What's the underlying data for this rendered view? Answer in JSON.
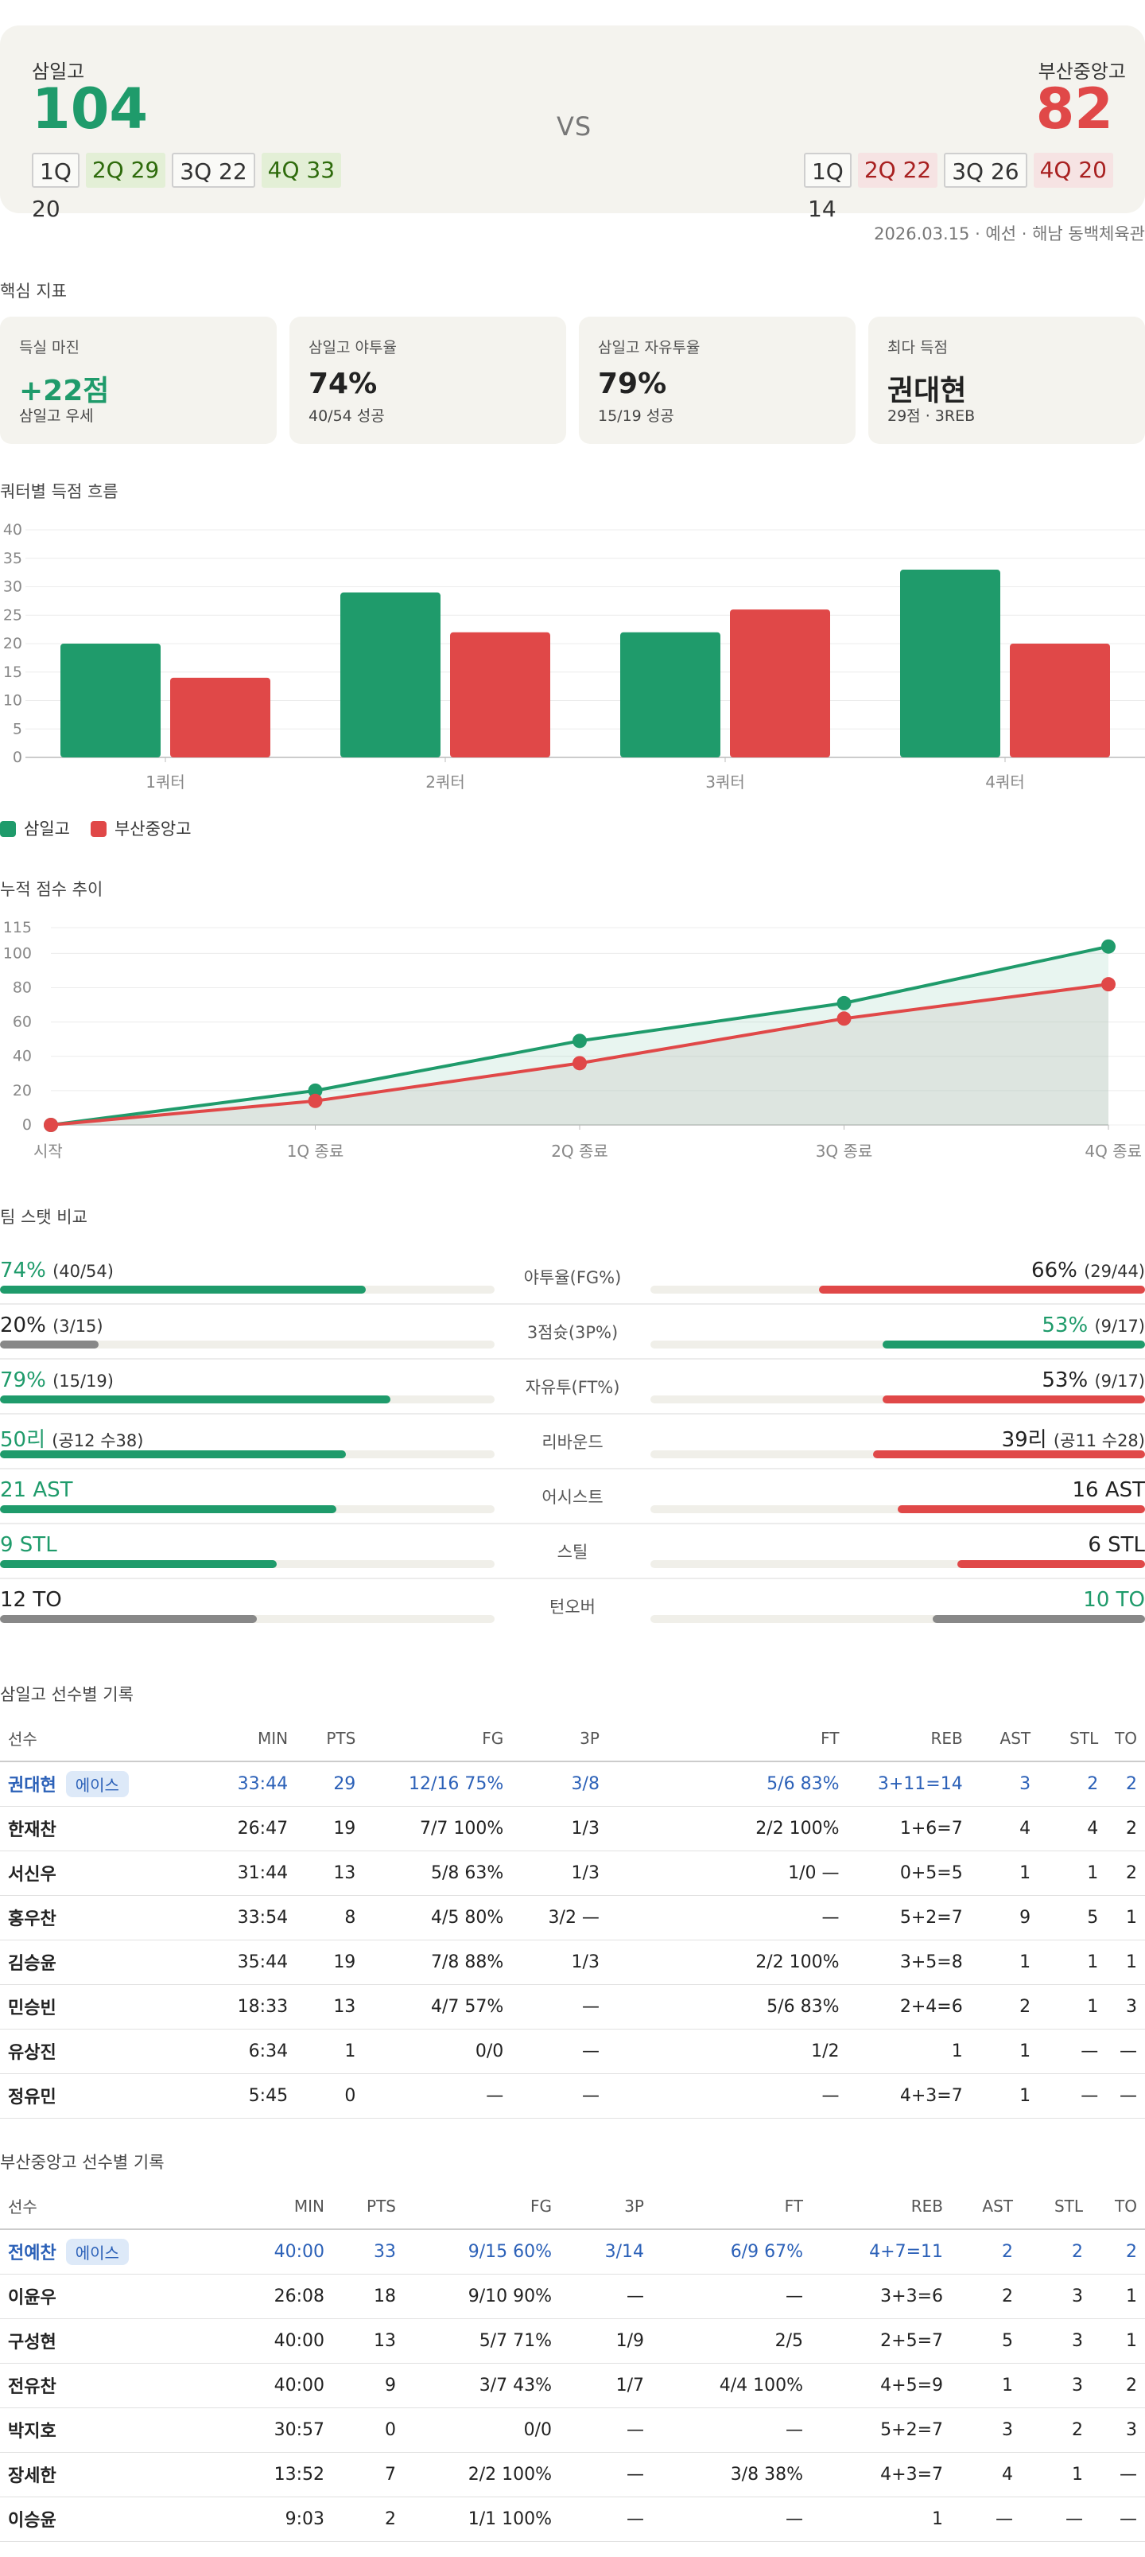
{
  "game": {
    "home": {
      "name": "삼일고",
      "score": "104",
      "color": "#1f9b6b",
      "quarters": [
        "1Q",
        "2Q 29",
        "3Q 22",
        "4Q 33"
      ],
      "q1_value": "20"
    },
    "away": {
      "name": "부산중앙고",
      "score": "82",
      "color": "#e04848",
      "quarters": [
        "1Q",
        "2Q 22",
        "3Q 26",
        "4Q 20"
      ],
      "q1_value": "14"
    },
    "vs": "VS",
    "meta": "2026.03.15 · 예선 · 해남 동백체육관"
  },
  "sections": {
    "key_metrics": "핵심 지표",
    "quarter_chart": "쿼터별 득점 흐름",
    "cumulative_chart": "누적 점수 추이",
    "team_compare": "팀 스탯 비교",
    "home_players": "삼일고 선수별 기록",
    "away_players": "부산중앙고 선수별 기록"
  },
  "metrics": [
    {
      "label": "득실 마진",
      "value": "+22점",
      "sub": "삼일고 우세",
      "accent": true
    },
    {
      "label": "삼일고 야투율",
      "value": "74%",
      "sub": "40/54 성공",
      "accent": false
    },
    {
      "label": "삼일고 자유투율",
      "value": "79%",
      "sub": "15/19 성공",
      "accent": false
    },
    {
      "label": "최다 득점",
      "value": "권대현",
      "sub": "29점 · 3REB",
      "accent": false
    }
  ],
  "chart_data": [
    {
      "type": "bar",
      "title": "쿼터별 득점 흐름",
      "categories": [
        "1쿼터",
        "2쿼터",
        "3쿼터",
        "4쿼터"
      ],
      "series": [
        {
          "name": "삼일고",
          "values": [
            20,
            29,
            22,
            33
          ],
          "color": "#1f9b6b"
        },
        {
          "name": "부산중앙고",
          "values": [
            14,
            22,
            26,
            20
          ],
          "color": "#e04848"
        }
      ],
      "yticks": [
        0,
        5,
        10,
        15,
        20,
        25,
        30,
        35,
        40
      ],
      "ylim": [
        0,
        40
      ],
      "legend": "bottom-left"
    },
    {
      "type": "line",
      "title": "누적 점수 추이",
      "categories": [
        "시작",
        "1Q 종료",
        "2Q 종료",
        "3Q 종료",
        "4Q 종료"
      ],
      "series": [
        {
          "name": "삼일고",
          "values": [
            0,
            20,
            49,
            71,
            104
          ],
          "color": "#1f9b6b"
        },
        {
          "name": "부산중앙고",
          "values": [
            0,
            14,
            36,
            62,
            82
          ],
          "color": "#e04848"
        }
      ],
      "yticks": [
        0,
        20,
        40,
        60,
        80,
        100,
        115
      ],
      "ylim": [
        0,
        115
      ]
    }
  ],
  "team_stats": [
    {
      "label": "야투율(FG%)",
      "left_main": "74%",
      "left_sub": "(40/54)",
      "right_main": "66%",
      "right_sub": "(29/44)",
      "left_pct": 74,
      "right_pct": 66,
      "left_color": "#1f9b6b",
      "right_color": "#e04848",
      "left_text": "#1f9b6b",
      "right_text": "#222"
    },
    {
      "label": "3점슛(3P%)",
      "left_main": "20%",
      "left_sub": "(3/15)",
      "right_main": "53%",
      "right_sub": "(9/17)",
      "left_pct": 20,
      "right_pct": 53,
      "left_color": "#888888",
      "right_color": "#1f9b6b",
      "left_text": "#222",
      "right_text": "#1f9b6b"
    },
    {
      "label": "자유투(FT%)",
      "left_main": "79%",
      "left_sub": "(15/19)",
      "right_main": "53%",
      "right_sub": "(9/17)",
      "left_pct": 79,
      "right_pct": 53,
      "left_color": "#1f9b6b",
      "right_color": "#e04848",
      "left_text": "#1f9b6b",
      "right_text": "#222"
    },
    {
      "label": "리바운드",
      "left_main": "50리",
      "left_sub": "(공12 수38)",
      "right_main": "39리",
      "right_sub": "(공11 수28)",
      "left_pct": 70,
      "right_pct": 55,
      "left_color": "#1f9b6b",
      "right_color": "#e04848",
      "left_text": "#1f9b6b",
      "right_text": "#222"
    },
    {
      "label": "어시스트",
      "left_main": "21 AST",
      "left_sub": "",
      "right_main": "16 AST",
      "right_sub": "",
      "left_pct": 68,
      "right_pct": 50,
      "left_color": "#1f9b6b",
      "right_color": "#e04848",
      "left_text": "#1f9b6b",
      "right_text": "#222"
    },
    {
      "label": "스틸",
      "left_main": "9 STL",
      "left_sub": "",
      "right_main": "6 STL",
      "right_sub": "",
      "left_pct": 56,
      "right_pct": 38,
      "left_color": "#1f9b6b",
      "right_color": "#e04848",
      "left_text": "#1f9b6b",
      "right_text": "#222"
    },
    {
      "label": "턴오버",
      "left_main": "12 TO",
      "left_sub": "",
      "right_main": "10 TO",
      "right_sub": "",
      "left_pct": 52,
      "right_pct": 43,
      "left_color": "#888888",
      "right_color": "#888888",
      "left_text": "#222",
      "right_text": "#1f9b6b"
    }
  ],
  "player_columns": [
    "선수",
    "MIN",
    "PTS",
    "FG",
    "3P",
    "FT",
    "REB",
    "AST",
    "STL",
    "TO"
  ],
  "ace_badge": "에이스",
  "home_players": [
    {
      "name": "권대현",
      "ace": true,
      "cells": [
        "33:44",
        "29",
        "12/16 75%",
        "3/8",
        "5/6 83%",
        "3+11=14",
        "3",
        "2",
        "2"
      ]
    },
    {
      "name": "한재찬",
      "ace": false,
      "cells": [
        "26:47",
        "19",
        "7/7 100%",
        "1/3",
        "2/2 100%",
        "1+6=7",
        "4",
        "4",
        "2"
      ]
    },
    {
      "name": "서신우",
      "ace": false,
      "cells": [
        "31:44",
        "13",
        "5/8 63%",
        "1/3",
        "1/0 —",
        "0+5=5",
        "1",
        "1",
        "2"
      ]
    },
    {
      "name": "홍우찬",
      "ace": false,
      "cells": [
        "33:54",
        "8",
        "4/5 80%",
        "3/2 —",
        "—",
        "5+2=7",
        "9",
        "5",
        "1"
      ]
    },
    {
      "name": "김승윤",
      "ace": false,
      "cells": [
        "35:44",
        "19",
        "7/8 88%",
        "1/3",
        "2/2 100%",
        "3+5=8",
        "1",
        "1",
        "1"
      ]
    },
    {
      "name": "민승빈",
      "ace": false,
      "cells": [
        "18:33",
        "13",
        "4/7 57%",
        "—",
        "5/6 83%",
        "2+4=6",
        "2",
        "1",
        "3"
      ]
    },
    {
      "name": "유상진",
      "ace": false,
      "cells": [
        "6:34",
        "1",
        "0/0",
        "—",
        "1/2",
        "1",
        "1",
        "—",
        "—"
      ]
    },
    {
      "name": "정유민",
      "ace": false,
      "cells": [
        "5:45",
        "0",
        "—",
        "—",
        "—",
        "4+3=7",
        "1",
        "—",
        "—"
      ]
    }
  ],
  "away_players": [
    {
      "name": "전예찬",
      "ace": true,
      "cells": [
        "40:00",
        "33",
        "9/15 60%",
        "3/14",
        "6/9 67%",
        "4+7=11",
        "2",
        "2",
        "2"
      ]
    },
    {
      "name": "이윤우",
      "ace": false,
      "cells": [
        "26:08",
        "18",
        "9/10 90%",
        "—",
        "—",
        "3+3=6",
        "2",
        "3",
        "1"
      ]
    },
    {
      "name": "구성현",
      "ace": false,
      "cells": [
        "40:00",
        "13",
        "5/7 71%",
        "1/9",
        "2/5",
        "2+5=7",
        "5",
        "3",
        "1"
      ]
    },
    {
      "name": "전유찬",
      "ace": false,
      "cells": [
        "40:00",
        "9",
        "3/7 43%",
        "1/7",
        "4/4 100%",
        "4+5=9",
        "1",
        "3",
        "2"
      ]
    },
    {
      "name": "박지호",
      "ace": false,
      "cells": [
        "30:57",
        "0",
        "0/0",
        "—",
        "—",
        "5+2=7",
        "3",
        "2",
        "3"
      ]
    },
    {
      "name": "장세한",
      "ace": false,
      "cells": [
        "13:52",
        "7",
        "2/2 100%",
        "—",
        "3/8 38%",
        "4+3=7",
        "4",
        "1",
        "—"
      ]
    },
    {
      "name": "이승윤",
      "ace": false,
      "cells": [
        "9:03",
        "2",
        "1/1 100%",
        "—",
        "—",
        "1",
        "—",
        "—",
        "—"
      ]
    }
  ]
}
